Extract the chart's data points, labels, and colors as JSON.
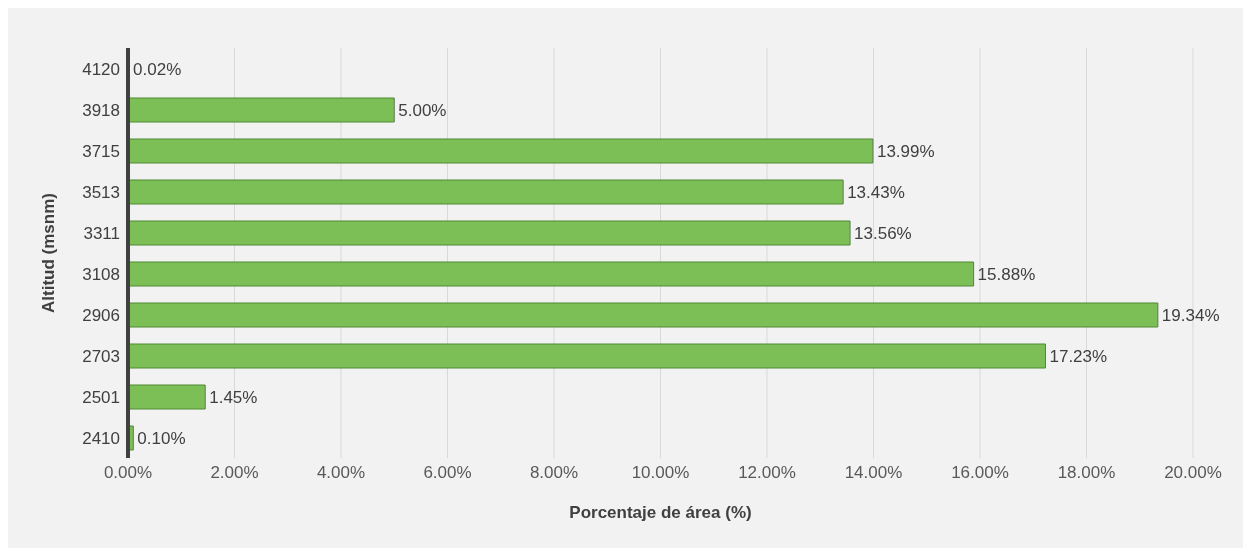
{
  "chart_data": {
    "type": "bar",
    "orientation": "horizontal",
    "xlabel": "Porcentaje de área (%)",
    "ylabel": "Altitud (msnm)",
    "categories": [
      "4120",
      "3918",
      "3715",
      "3513",
      "3311",
      "3108",
      "2906",
      "2703",
      "2501",
      "2410"
    ],
    "values": [
      0.02,
      5.0,
      13.99,
      13.43,
      13.56,
      15.88,
      19.34,
      17.23,
      1.45,
      0.1
    ],
    "value_labels": [
      "0.02%",
      "5.00%",
      "13.99%",
      "13.43%",
      "13.56%",
      "15.88%",
      "19.34%",
      "17.23%",
      "1.45%",
      "0.10%"
    ],
    "color": "#7cbf56",
    "xlim": [
      0,
      20
    ],
    "xticks": [
      {
        "value": 0,
        "label": "0.00%"
      },
      {
        "value": 2,
        "label": "2.00%"
      },
      {
        "value": 4,
        "label": "4.00%"
      },
      {
        "value": 6,
        "label": "6.00%"
      },
      {
        "value": 8,
        "label": "8.00%"
      },
      {
        "value": 10,
        "label": "10.00%"
      },
      {
        "value": 12,
        "label": "12.00%"
      },
      {
        "value": 14,
        "label": "14.00%"
      },
      {
        "value": 16,
        "label": "16.00%"
      },
      {
        "value": 18,
        "label": "18.00%"
      },
      {
        "value": 20,
        "label": "20.00%"
      }
    ],
    "grid": "x"
  }
}
